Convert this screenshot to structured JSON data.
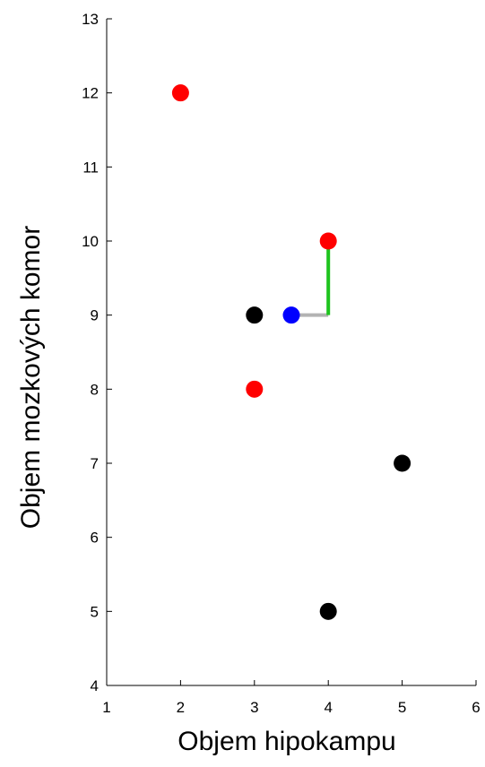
{
  "chart_data": {
    "type": "scatter",
    "title": "",
    "xlabel": "Objem hipokampu",
    "ylabel": "Objem mozkových komor",
    "xlim": [
      1,
      6
    ],
    "ylim": [
      4,
      13
    ],
    "x_ticks": [
      "1",
      "2",
      "3",
      "4",
      "5",
      "6"
    ],
    "y_ticks": [
      "4",
      "5",
      "6",
      "7",
      "8",
      "9",
      "10",
      "11",
      "12",
      "13"
    ],
    "grid": false,
    "legend": "none",
    "series": [
      {
        "color": "#ff0000",
        "points": [
          {
            "x": 2,
            "y": 12
          },
          {
            "x": 4,
            "y": 10
          },
          {
            "x": 3,
            "y": 8
          }
        ]
      },
      {
        "color": "#000000",
        "points": [
          {
            "x": 3,
            "y": 9
          },
          {
            "x": 5,
            "y": 7
          },
          {
            "x": 4,
            "y": 5
          }
        ]
      },
      {
        "color": "#0000ff",
        "points": [
          {
            "x": 3.5,
            "y": 9
          }
        ]
      }
    ],
    "annotations": [
      {
        "type": "segment",
        "color": "#b3b3b3",
        "from": {
          "x": 3.5,
          "y": 9
        },
        "to": {
          "x": 4,
          "y": 9
        }
      },
      {
        "type": "segment",
        "color": "#1ec41e",
        "from": {
          "x": 4,
          "y": 9
        },
        "to": {
          "x": 4,
          "y": 10
        }
      }
    ]
  }
}
